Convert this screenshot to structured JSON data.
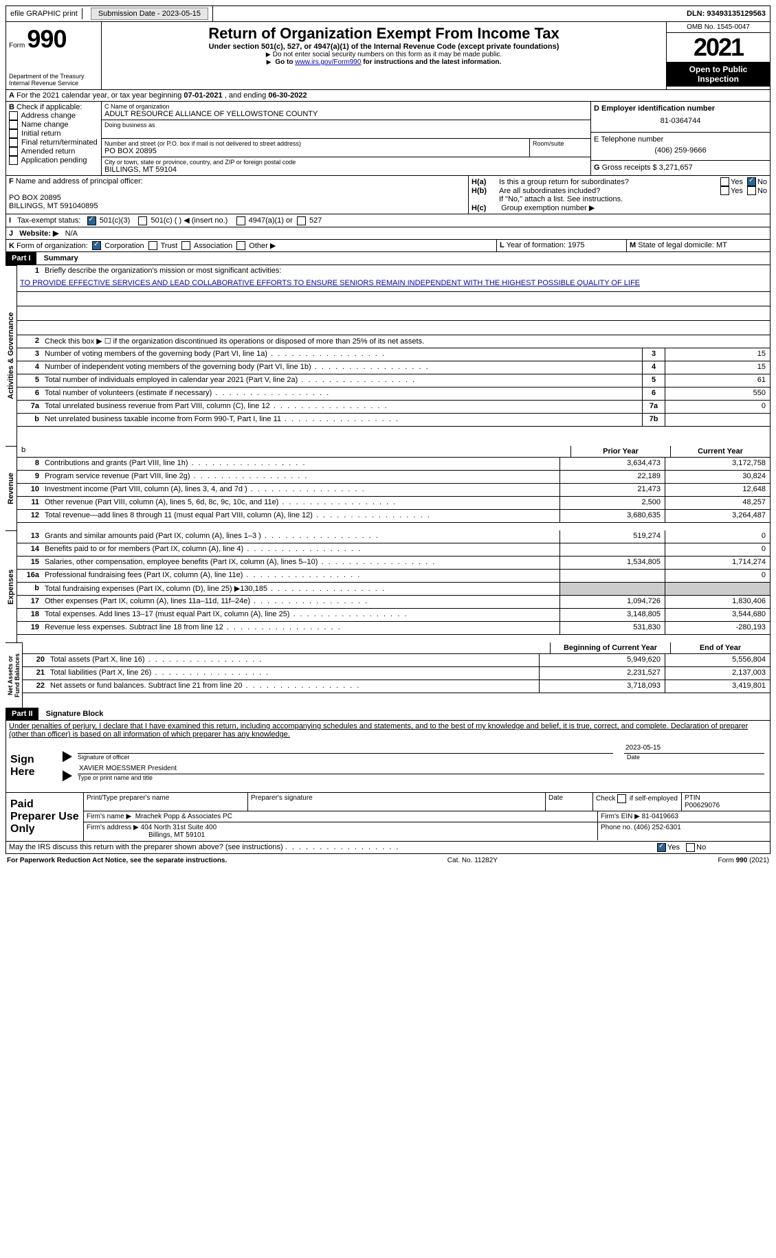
{
  "topbar": {
    "efile": "efile GRAPHIC print",
    "submission_label": "Submission Date - ",
    "submission_date": "2023-05-15",
    "dln_label": "DLN: ",
    "dln": "93493135129563"
  },
  "header": {
    "form_label": "Form",
    "form_number": "990",
    "dept": "Department of the Treasury\nInternal Revenue Service",
    "title": "Return of Organization Exempt From Income Tax",
    "subtitle": "Under section 501(c), 527, or 4947(a)(1) of the Internal Revenue Code (except private foundations)",
    "note1": "Do not enter social security numbers on this form as it may be made public.",
    "note2_pre": "Go to ",
    "note2_link": "www.irs.gov/Form990",
    "note2_post": " for instructions and the latest information.",
    "omb": "OMB No. 1545-0047",
    "year": "2021",
    "open": "Open to Public Inspection"
  },
  "line_a": {
    "label": "A",
    "text": "For the 2021 calendar year, or tax year beginning ",
    "begin": "07-01-2021",
    "mid": " , and ending ",
    "end": "06-30-2022"
  },
  "box_b": {
    "label": "B",
    "t": "Check if applicable:",
    "items": [
      "Address change",
      "Name change",
      "Initial return",
      "Final return/terminated",
      "Amended return",
      "Application pending"
    ]
  },
  "box_c": {
    "name_lbl": "C Name of organization",
    "name": "ADULT RESOURCE ALLIANCE OF YELLOWSTONE COUNTY",
    "dba_lbl": "Doing business as",
    "addr_lbl": "Number and street (or P.O. box if mail is not delivered to street address)",
    "room_lbl": "Room/suite",
    "addr": "PO BOX 20895",
    "city_lbl": "City or town, state or province, country, and ZIP or foreign postal code",
    "city": "BILLINGS, MT  59104"
  },
  "box_d": {
    "lbl": "D Employer identification number",
    "val": "81-0364744"
  },
  "box_e": {
    "lbl": "E Telephone number",
    "val": "(406) 259-9666"
  },
  "box_g": {
    "lbl": "G",
    "txt": "Gross receipts $",
    "val": "3,271,657"
  },
  "box_f": {
    "lbl": "F",
    "txt": "Name and address of principal officer:",
    "line1": "PO BOX 20895",
    "line2": "BILLINGS, MT  591040895"
  },
  "box_h": {
    "a_lbl": "H(a)",
    "a_txt": "Is this a group return for subordinates?",
    "b_lbl": "H(b)",
    "b_txt": "Are all subordinates included?",
    "note": "If \"No,\" attach a list. See instructions.",
    "c_lbl": "H(c)",
    "c_txt": "Group exemption number ▶",
    "yes": "Yes",
    "no": "No"
  },
  "line_i": {
    "lbl": "I",
    "txt": "Tax-exempt status:",
    "opts": [
      "501(c)(3)",
      "501(c) (  ) ◀ (insert no.)",
      "4947(a)(1) or",
      "527"
    ]
  },
  "line_j": {
    "lbl": "J",
    "txt": "Website: ▶",
    "val": "N/A"
  },
  "line_k": {
    "lbl": "K",
    "txt": "Form of organization:",
    "opts": [
      "Corporation",
      "Trust",
      "Association",
      "Other ▶"
    ]
  },
  "line_l": {
    "lbl": "L",
    "txt": "Year of formation:",
    "val": "1975"
  },
  "line_m": {
    "lbl": "M",
    "txt": "State of legal domicile:",
    "val": "MT"
  },
  "parts": {
    "p1_hdr": "Part I",
    "p1_title": "Summary",
    "p2_hdr": "Part II",
    "p2_title": "Signature Block"
  },
  "sides": {
    "gov": "Activities & Governance",
    "rev": "Revenue",
    "exp": "Expenses",
    "net": "Net Assets or\nFund Balances"
  },
  "mission": {
    "lbl": "1",
    "txt": "Briefly describe the organization's mission or most significant activities:",
    "val": "TO PROVIDE EFFECTIVE SERVICES AND LEAD COLLABORATIVE EFFORTS TO ENSURE SENIORS REMAIN INDEPENDENT WITH THE HIGHEST POSSIBLE QUALITY OF LIFE"
  },
  "gov_rows": [
    {
      "n": "2",
      "d": "Check this box ▶ ☐  if the organization discontinued its operations or disposed of more than 25% of its net assets.",
      "box": "",
      "v": ""
    },
    {
      "n": "3",
      "d": "Number of voting members of the governing body (Part VI, line 1a)",
      "box": "3",
      "v": "15"
    },
    {
      "n": "4",
      "d": "Number of independent voting members of the governing body (Part VI, line 1b)",
      "box": "4",
      "v": "15"
    },
    {
      "n": "5",
      "d": "Total number of individuals employed in calendar year 2021 (Part V, line 2a)",
      "box": "5",
      "v": "61"
    },
    {
      "n": "6",
      "d": "Total number of volunteers (estimate if necessary)",
      "box": "6",
      "v": "550"
    },
    {
      "n": "7a",
      "d": "Total unrelated business revenue from Part VIII, column (C), line 12",
      "box": "7a",
      "v": "0"
    },
    {
      "n": "b",
      "d": "Net unrelated business taxable income from Form 990-T, Part I, line 11",
      "box": "7b",
      "v": ""
    }
  ],
  "colheads": {
    "prior": "Prior Year",
    "current": "Current Year",
    "begin": "Beginning of Current Year",
    "end": "End of Year"
  },
  "rev_rows": [
    {
      "n": "8",
      "d": "Contributions and grants (Part VIII, line 1h)",
      "p": "3,634,473",
      "c": "3,172,758"
    },
    {
      "n": "9",
      "d": "Program service revenue (Part VIII, line 2g)",
      "p": "22,189",
      "c": "30,824"
    },
    {
      "n": "10",
      "d": "Investment income (Part VIII, column (A), lines 3, 4, and 7d )",
      "p": "21,473",
      "c": "12,648"
    },
    {
      "n": "11",
      "d": "Other revenue (Part VIII, column (A), lines 5, 6d, 8c, 9c, 10c, and 11e)",
      "p": "2,500",
      "c": "48,257"
    },
    {
      "n": "12",
      "d": "Total revenue—add lines 8 through 11 (must equal Part VIII, column (A), line 12)",
      "p": "3,680,635",
      "c": "3,264,487"
    }
  ],
  "exp_rows": [
    {
      "n": "13",
      "d": "Grants and similar amounts paid (Part IX, column (A), lines 1–3 )",
      "p": "519,274",
      "c": "0"
    },
    {
      "n": "14",
      "d": "Benefits paid to or for members (Part IX, column (A), line 4)",
      "p": "",
      "c": "0"
    },
    {
      "n": "15",
      "d": "Salaries, other compensation, employee benefits (Part IX, column (A), lines 5–10)",
      "p": "1,534,805",
      "c": "1,714,274"
    },
    {
      "n": "16a",
      "d": "Professional fundraising fees (Part IX, column (A), line 11e)",
      "p": "",
      "c": "0"
    },
    {
      "n": "b",
      "d": "Total fundraising expenses (Part IX, column (D), line 25) ▶130,185",
      "p": "grey",
      "c": "grey"
    },
    {
      "n": "17",
      "d": "Other expenses (Part IX, column (A), lines 11a–11d, 11f–24e)",
      "p": "1,094,726",
      "c": "1,830,406"
    },
    {
      "n": "18",
      "d": "Total expenses. Add lines 13–17 (must equal Part IX, column (A), line 25)",
      "p": "3,148,805",
      "c": "3,544,680"
    },
    {
      "n": "19",
      "d": "Revenue less expenses. Subtract line 18 from line 12",
      "p": "531,830",
      "c": "-280,193"
    }
  ],
  "net_rows": [
    {
      "n": "20",
      "d": "Total assets (Part X, line 16)",
      "p": "5,949,620",
      "c": "5,556,804"
    },
    {
      "n": "21",
      "d": "Total liabilities (Part X, line 26)",
      "p": "2,231,527",
      "c": "2,137,003"
    },
    {
      "n": "22",
      "d": "Net assets or fund balances. Subtract line 21 from line 20",
      "p": "3,718,093",
      "c": "3,419,801"
    }
  ],
  "sig": {
    "decl": "Under penalties of perjury, I declare that I have examined this return, including accompanying schedules and statements, and to the best of my knowledge and belief, it is true, correct, and complete. Declaration of preparer (other than officer) is based on all information of which preparer has any knowledge.",
    "sign_lbl": "Sign Here",
    "sig_of": "Signature of officer",
    "date_lbl": "Date",
    "date": "2023-05-15",
    "name": "XAVIER MOESSMER  President",
    "name_lbl": "Type or print name and title"
  },
  "prep": {
    "lbl": "Paid Preparer Use Only",
    "h1": "Print/Type preparer's name",
    "h2": "Preparer's signature",
    "h3": "Date",
    "h4_pre": "Check",
    "h4_post": "if self-employed",
    "h5_lbl": "PTIN",
    "h5": "P00629076",
    "firm_lbl": "Firm's name   ▶",
    "firm": "Mrachek Popp & Associates PC",
    "ein_lbl": "Firm's EIN ▶",
    "ein": "81-0419663",
    "addr_lbl": "Firm's address ▶",
    "addr1": "404 North 31st Suite 400",
    "addr2": "Billings, MT  59101",
    "phone_lbl": "Phone no.",
    "phone": "(406) 252-6301"
  },
  "may_discuss": {
    "txt": "May the IRS discuss this return with the preparer shown above? (see instructions)",
    "yes": "Yes",
    "no": "No"
  },
  "footer": {
    "left": "For Paperwork Reduction Act Notice, see the separate instructions.",
    "mid": "Cat. No. 11282Y",
    "right": "Form 990 (2021)"
  }
}
